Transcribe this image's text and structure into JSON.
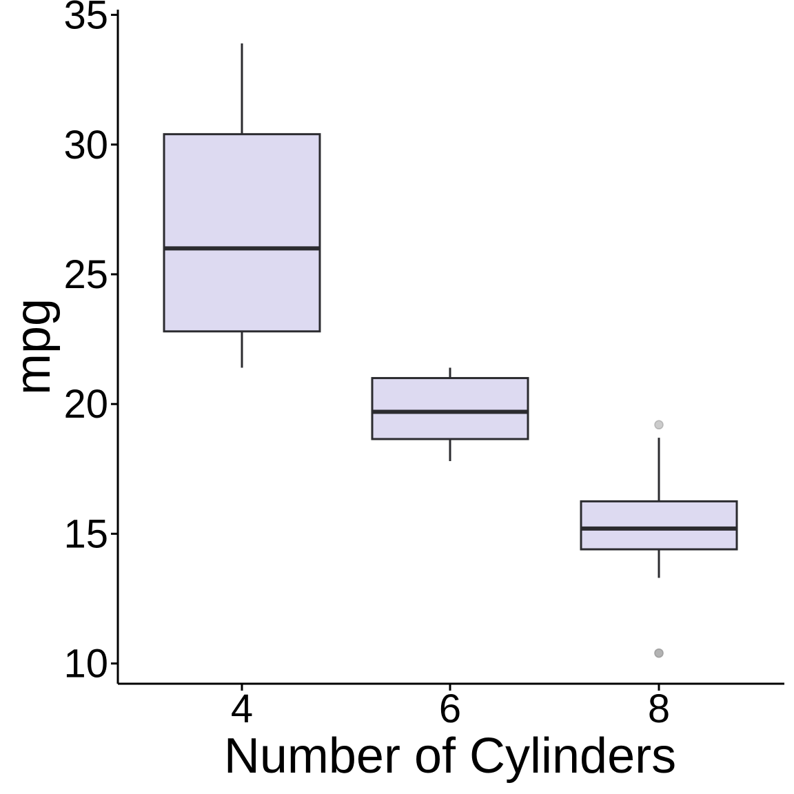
{
  "chart_data": {
    "type": "box",
    "title": "",
    "xlabel": "Number of Cylinders",
    "ylabel": "mpg",
    "categories": [
      "4",
      "6",
      "8"
    ],
    "y_ticks": [
      10,
      15,
      20,
      25,
      30,
      35
    ],
    "ylim": [
      9.22,
      35.2
    ],
    "grid": false,
    "legend": "none",
    "boxes": [
      {
        "category": "4",
        "min": 21.4,
        "q1": 22.8,
        "median": 26.0,
        "q3": 30.4,
        "max": 33.9,
        "outliers": []
      },
      {
        "category": "6",
        "min": 17.8,
        "q1": 18.65,
        "median": 19.7,
        "q3": 21.0,
        "max": 21.4,
        "outliers": []
      },
      {
        "category": "8",
        "min": 13.3,
        "q1": 14.4,
        "median": 15.2,
        "q3": 16.25,
        "max": 18.7,
        "outliers": [
          10.4,
          10.4,
          19.2
        ]
      }
    ],
    "colors": {
      "box_fill": "#dddaf1",
      "box_stroke": "#2b2b2f",
      "outlier_fill": "#9a9a9a",
      "axis": "#000000"
    }
  }
}
